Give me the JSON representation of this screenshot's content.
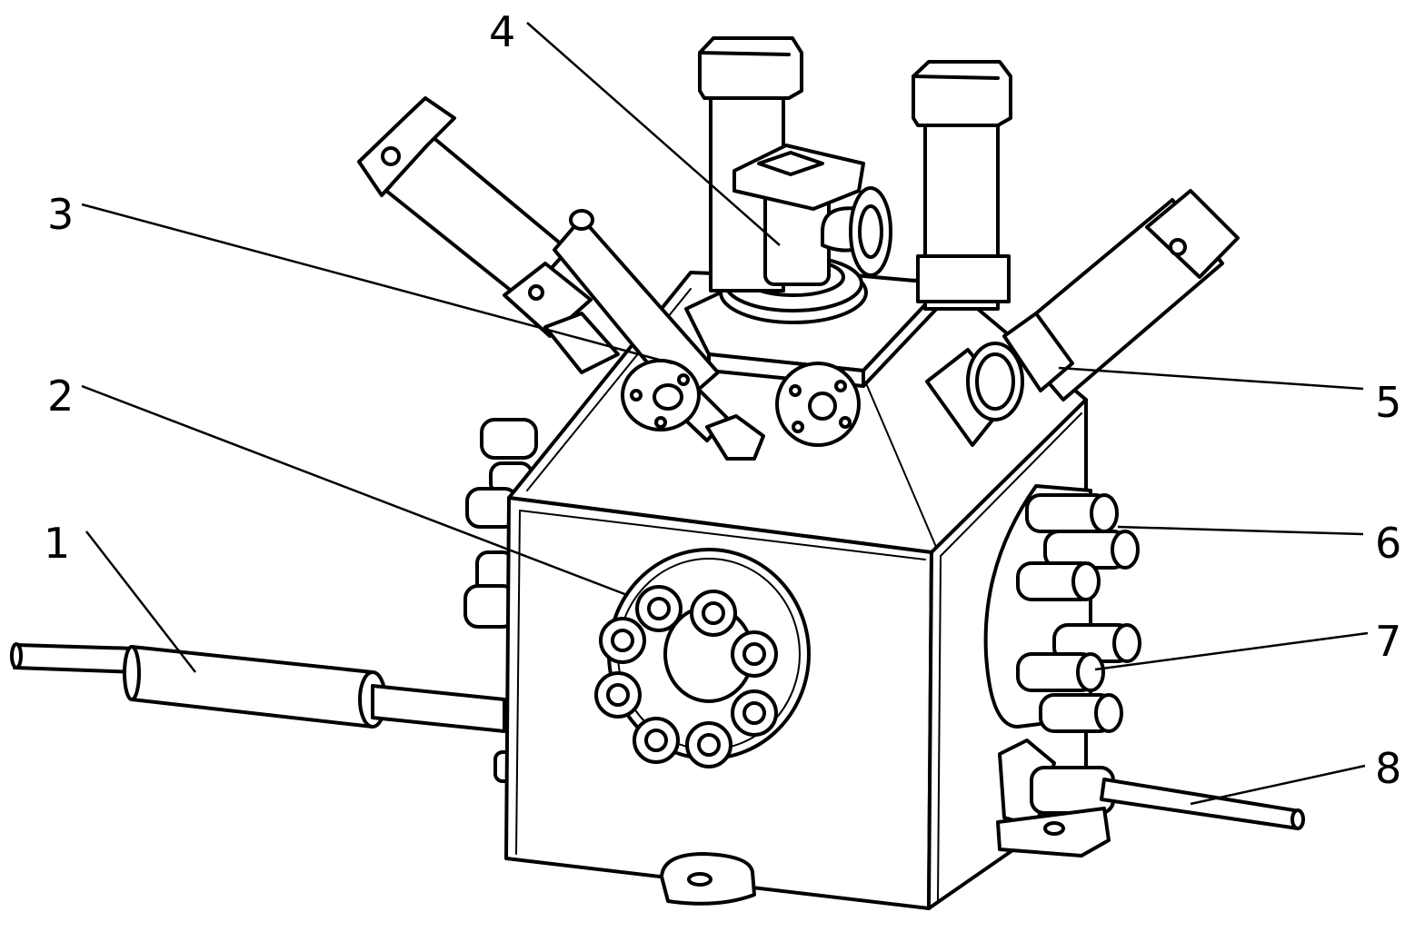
{
  "callouts": [
    {
      "id": "1",
      "label": "1"
    },
    {
      "id": "2",
      "label": "2"
    },
    {
      "id": "3",
      "label": "3"
    },
    {
      "id": "4",
      "label": "4"
    },
    {
      "id": "5",
      "label": "5"
    },
    {
      "id": "6",
      "label": "6"
    },
    {
      "id": "7",
      "label": "7"
    },
    {
      "id": "8",
      "label": "8"
    }
  ]
}
